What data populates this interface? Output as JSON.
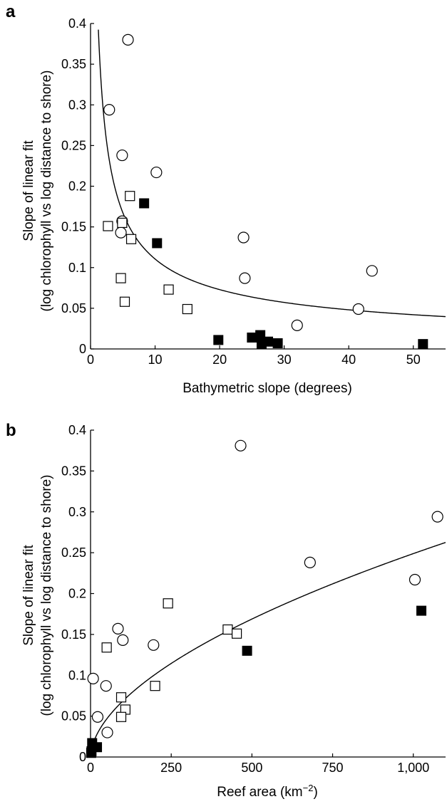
{
  "chart_data": [
    {
      "panel": "a",
      "type": "scatter",
      "xlabel": "Bathymetric slope (degrees)",
      "ylabel_line1": "Slope of linear fit",
      "ylabel_line2": "(log chlorophyll vs log distance to shore)",
      "xlim": [
        0,
        55
      ],
      "ylim": [
        0,
        0.4
      ],
      "xticks": [
        0,
        10,
        20,
        30,
        40,
        50
      ],
      "xtick_labels": [
        "0",
        "10",
        "20",
        "30",
        "40",
        "50"
      ],
      "yticks": [
        0,
        0.05,
        0.1,
        0.15,
        0.2,
        0.25,
        0.3,
        0.35,
        0.4
      ],
      "ytick_labels": [
        "0",
        "0.05",
        "0.1",
        "0.15",
        "0.2",
        "0.25",
        "0.3",
        "0.35",
        "0.4"
      ],
      "fit": {
        "form": "power",
        "a": 0.44,
        "b": -0.6
      },
      "series": [
        {
          "marker": "open-circle",
          "points": [
            [
              5.8,
              0.38
            ],
            [
              2.9,
              0.294
            ],
            [
              4.9,
              0.238
            ],
            [
              10.2,
              0.217
            ],
            [
              4.9,
              0.157
            ],
            [
              4.7,
              0.143
            ],
            [
              23.7,
              0.137
            ],
            [
              23.9,
              0.087
            ],
            [
              43.6,
              0.096
            ],
            [
              41.5,
              0.049
            ],
            [
              32.0,
              0.029
            ]
          ]
        },
        {
          "marker": "open-square",
          "points": [
            [
              6.1,
              0.188
            ],
            [
              2.7,
              0.151
            ],
            [
              4.9,
              0.155
            ],
            [
              6.3,
              0.135
            ],
            [
              4.7,
              0.087
            ],
            [
              5.3,
              0.058
            ],
            [
              12.1,
              0.073
            ],
            [
              15.0,
              0.049
            ]
          ]
        },
        {
          "marker": "filled-square",
          "points": [
            [
              8.3,
              0.179
            ],
            [
              10.3,
              0.13
            ],
            [
              19.8,
              0.011
            ],
            [
              25.0,
              0.014
            ],
            [
              26.3,
              0.017
            ],
            [
              26.5,
              0.006
            ],
            [
              27.5,
              0.009
            ],
            [
              29.0,
              0.007
            ],
            [
              51.5,
              0.006
            ]
          ]
        }
      ]
    },
    {
      "panel": "b",
      "type": "scatter",
      "xlabel_main": "Reef area (km",
      "xlabel_sup": "−2",
      "xlabel_end": ")",
      "ylabel_line1": "Slope of linear fit",
      "ylabel_line2": "(log chlorophyll vs log distance to shore)",
      "xlim": [
        0,
        1100
      ],
      "ylim": [
        0,
        0.4
      ],
      "xticks": [
        0,
        250,
        500,
        750,
        1000
      ],
      "xtick_labels": [
        "0",
        "250",
        "500",
        "750",
        "1,000"
      ],
      "yticks": [
        0,
        0.05,
        0.1,
        0.15,
        0.2,
        0.25,
        0.3,
        0.35,
        0.4
      ],
      "ytick_labels": [
        "0",
        "0.05",
        "0.1",
        "0.15",
        "0.2",
        "0.25",
        "0.3",
        "0.35",
        "0.4"
      ],
      "fit": {
        "form": "power",
        "a": 0.0052,
        "b": 0.56
      },
      "series": [
        {
          "marker": "open-circle",
          "points": [
            [
              465,
              0.381
            ],
            [
              1075,
              0.294
            ],
            [
              680,
              0.238
            ],
            [
              1005,
              0.217
            ],
            [
              85,
              0.157
            ],
            [
              100,
              0.143
            ],
            [
              195,
              0.137
            ],
            [
              8,
              0.096
            ],
            [
              48,
              0.087
            ],
            [
              22,
              0.049
            ],
            [
              52,
              0.03
            ]
          ]
        },
        {
          "marker": "open-square",
          "points": [
            [
              240,
              0.188
            ],
            [
              425,
              0.156
            ],
            [
              453,
              0.151
            ],
            [
              50,
              0.134
            ],
            [
              200,
              0.087
            ],
            [
              95,
              0.073
            ],
            [
              108,
              0.058
            ],
            [
              95,
              0.049
            ]
          ]
        },
        {
          "marker": "filled-square",
          "points": [
            [
              1025,
              0.179
            ],
            [
              485,
              0.13
            ],
            [
              5,
              0.017
            ],
            [
              20,
              0.012
            ],
            [
              3,
              0.007
            ],
            [
              2,
              0.005
            ]
          ]
        }
      ]
    }
  ]
}
